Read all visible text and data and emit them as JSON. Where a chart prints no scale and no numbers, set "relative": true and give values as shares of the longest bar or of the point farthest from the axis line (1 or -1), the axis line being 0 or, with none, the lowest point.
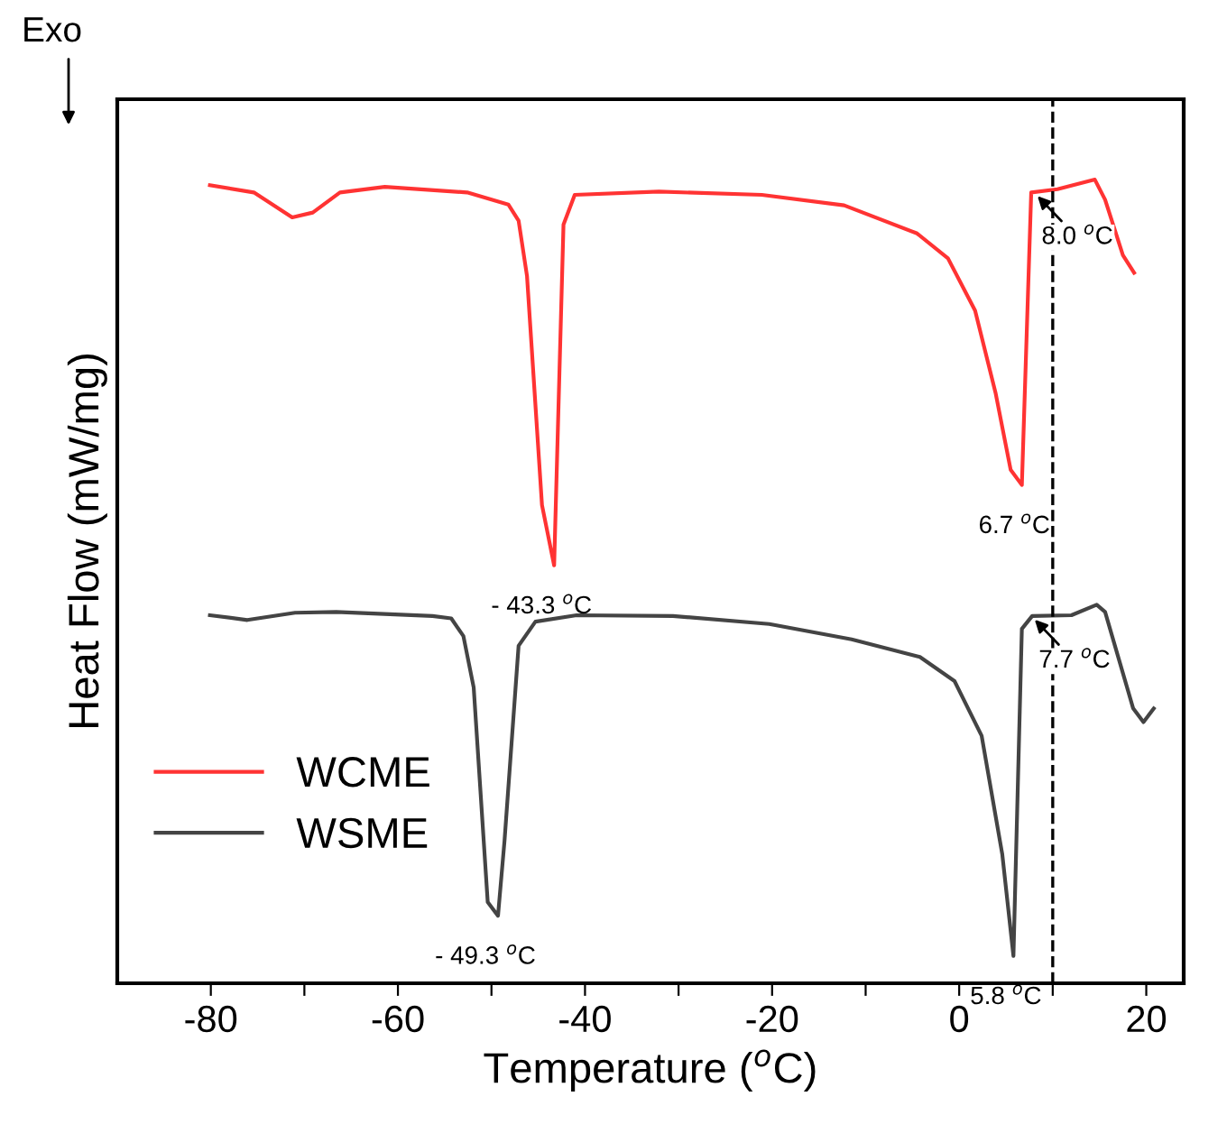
{
  "chart_data": {
    "type": "line",
    "relative": true,
    "xlabel": "Temperature ($^{o}$C)",
    "ylabel": "Heat Flow (mW/mg)",
    "xlim": [
      -90,
      24
    ],
    "xticks": [
      -80,
      {
        "value": -70,
        "label": null
      },
      -60,
      {
        "value": -50,
        "label": null
      },
      -40,
      {
        "value": -30,
        "label": null
      },
      -20,
      {
        "value": -10,
        "label": null
      },
      0,
      {
        "value": 10,
        "label": null
      },
      20
    ],
    "tick_labels": "x",
    "legend": "bottom left",
    "grid": false,
    "series": [
      {
        "name": "WCME",
        "color": "#ff3333",
        "x": [
          -80.1,
          -75.4,
          -71.3,
          -69.1,
          -66.2,
          -61.4,
          -52.6,
          -48.2,
          -47.1,
          -46.2,
          -44.6,
          -43.3,
          -42.3,
          -41.1,
          -32.1,
          -21.1,
          -12.3,
          -4.5,
          -1.2,
          1.7,
          3.9,
          5.5,
          6.7,
          7.7,
          10.5,
          14.5,
          15.6,
          17.5,
          18.7
        ],
        "values": [
          0.993,
          0.984,
          0.953,
          0.959,
          0.984,
          0.991,
          0.984,
          0.969,
          0.949,
          0.88,
          0.595,
          0.52,
          0.944,
          0.981,
          0.985,
          0.981,
          0.968,
          0.933,
          0.902,
          0.837,
          0.734,
          0.639,
          0.62,
          0.984,
          0.988,
          1.0,
          0.975,
          0.906,
          0.884
        ]
      },
      {
        "name": "WSME",
        "color": "#444444",
        "x": [
          -80.1,
          -76.1,
          -71.0,
          -66.6,
          -56.3,
          -54.3,
          -53.0,
          -51.9,
          -50.4,
          -49.3,
          -48.6,
          -47.1,
          -45.3,
          -40.9,
          -30.6,
          -20.3,
          -11.5,
          -4.2,
          -0.5,
          2.4,
          4.6,
          5.8,
          6.7,
          7.8,
          12.0,
          14.7,
          15.6,
          17.1,
          18.6,
          19.7,
          20.8
        ],
        "values": [
          0.458,
          0.452,
          0.461,
          0.462,
          0.457,
          0.454,
          0.432,
          0.368,
          0.101,
          0.084,
          0.178,
          0.42,
          0.45,
          0.458,
          0.457,
          0.447,
          0.428,
          0.406,
          0.376,
          0.308,
          0.161,
          0.034,
          0.441,
          0.457,
          0.458,
          0.471,
          0.462,
          0.402,
          0.342,
          0.325,
          0.342
        ]
      }
    ],
    "ref_lines": [
      {
        "axis": "x",
        "value": 10,
        "color": "#000000",
        "line_style": "dashed"
      }
    ],
    "annotations": [
      {
        "text": "- 43.3 $^{o}$C",
        "x": -43.3,
        "y": 0.52
      },
      {
        "text": "6.7 $^{o}$C",
        "x": 6.7,
        "y": 0.62
      },
      {
        "text": "8.0 $^{o}$C",
        "x": 8.0,
        "y": 0.984
      },
      {
        "text": "- 49.3 $^{o}$C",
        "x": -49.3,
        "y": 0.084
      },
      {
        "text": "5.8 $^{o}$C",
        "x": 5.8,
        "y": 0.034
      },
      {
        "text": "7.7 $^{o}$C",
        "x": 7.7,
        "y": 0.457
      },
      "Exo"
    ]
  }
}
